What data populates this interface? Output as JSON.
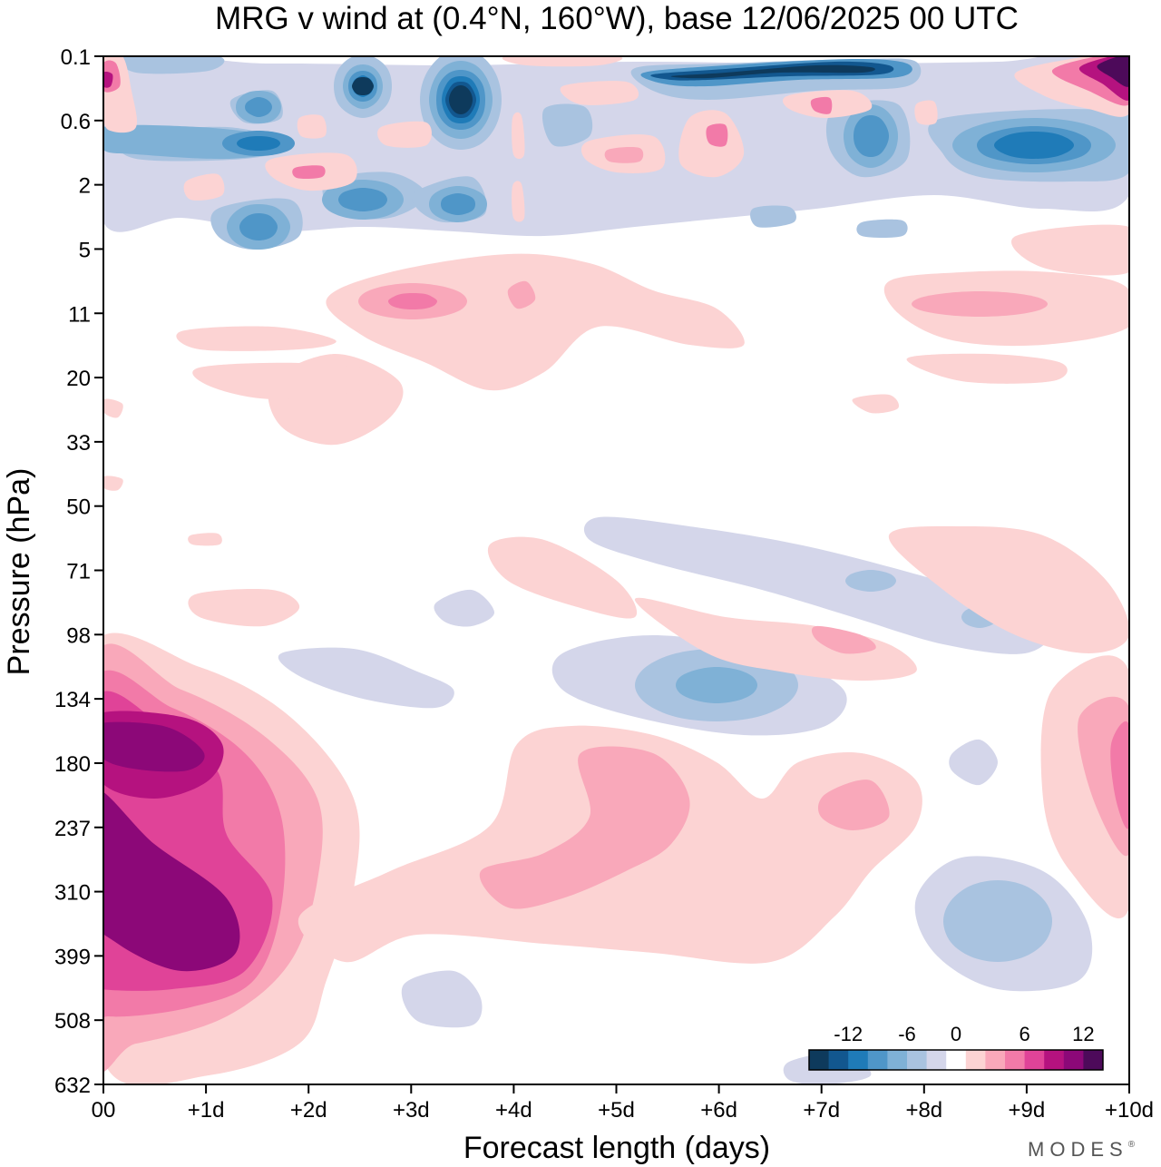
{
  "chart_data": {
    "type": "heatmap",
    "title": "MRG v wind at (0.4°N, 160°W),  base 12/06/2025  00 UTC",
    "xlabel": "Forecast length (days)",
    "ylabel": "Pressure (hPa)",
    "x_ticks": [
      "00",
      "+1d",
      "+2d",
      "+3d",
      "+4d",
      "+5d",
      "+6d",
      "+7d",
      "+8d",
      "+9d",
      "+10d"
    ],
    "xlim": [
      0,
      10
    ],
    "y_ticks": [
      "0.1",
      "0.6",
      "2",
      "5",
      "11",
      "20",
      "33",
      "50",
      "71",
      "98",
      "134",
      "180",
      "237",
      "310",
      "399",
      "508",
      "632"
    ],
    "y_scale": "pressure (log)",
    "colorbar": {
      "tick_labels": [
        "-12",
        "-6",
        "0",
        "6",
        "12"
      ],
      "levels": [
        -16,
        -14,
        -12,
        -10,
        -8,
        -6,
        -4,
        -2,
        2,
        4,
        6,
        8,
        10,
        12,
        14,
        16
      ],
      "colors": [
        "#0e3a5c",
        "#12578f",
        "#1f7bb8",
        "#4f96c8",
        "#7fb1d6",
        "#a9c3e0",
        "#d4d6ea",
        "#ffffff",
        "#fcd3d3",
        "#f9a8ba",
        "#f27aa8",
        "#e04398",
        "#b5127f",
        "#8c0878",
        "#4d0a5a"
      ],
      "placement": "bottom-right"
    },
    "features": [
      {
        "sign": "positive",
        "level": 6,
        "x": [
          0,
          2.5
        ],
        "pressure_hPa": [
          134,
          632
        ]
      },
      {
        "sign": "positive",
        "level": 14,
        "x": [
          0,
          1.3
        ],
        "pressure_hPa": [
          250,
          420
        ]
      },
      {
        "sign": "positive",
        "level": 12,
        "x": [
          0,
          1.1
        ],
        "pressure_hPa": [
          134,
          180
        ]
      },
      {
        "sign": "negative",
        "level": -4,
        "x": [
          5.5,
          6.5
        ],
        "pressure_hPa": [
          110,
          134
        ]
      },
      {
        "sign": "negative",
        "level": -4,
        "x": [
          8.3,
          9.4
        ],
        "pressure_hPa": [
          300,
          420
        ]
      },
      {
        "sign": "negative",
        "level": -14,
        "x": [
          3.2,
          3.7
        ],
        "pressure_hPa": [
          0.2,
          0.4
        ]
      },
      {
        "sign": "negative",
        "level": -14,
        "x": [
          5.3,
          8.0
        ],
        "pressure_hPa": [
          0.1,
          0.2
        ]
      },
      {
        "sign": "positive",
        "level": 14,
        "x": [
          9.6,
          10
        ],
        "pressure_hPa": [
          0.1,
          0.3
        ]
      }
    ]
  },
  "brand": "MODES",
  "brand_mark": "®"
}
